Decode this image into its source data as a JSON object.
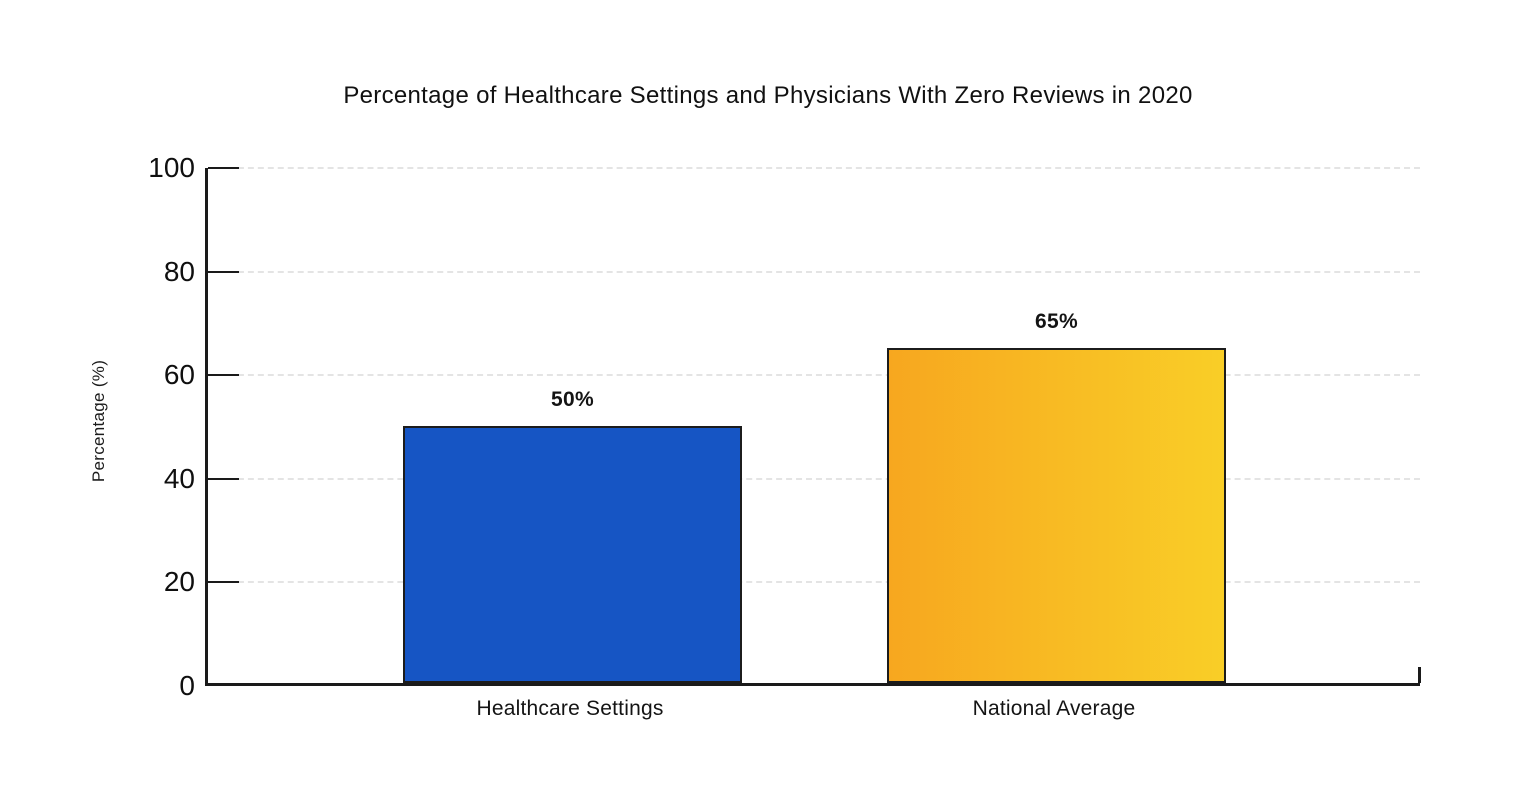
{
  "chart_data": {
    "type": "bar",
    "title": "Percentage of Healthcare Settings and Physicians With Zero Reviews in 2020",
    "ylabel": "Percentage (%)",
    "xlabel": "",
    "categories": [
      "Healthcare Settings",
      "National Average"
    ],
    "values": [
      50,
      65
    ],
    "value_labels": [
      "50%",
      "65%"
    ],
    "ylim": [
      0,
      100
    ],
    "yticks": [
      "0",
      "20",
      "40",
      "60",
      "80",
      "100"
    ],
    "grid": "horizontal-dashed",
    "legend_position": "none",
    "bar_fills": [
      {
        "style": "solid",
        "color": "#1655c4",
        "to": null
      },
      {
        "style": "gradient-left-to-right",
        "color": "#f7a71f",
        "to": "#f9ce27"
      }
    ],
    "bar_border_color": "#1c1c1c",
    "axis_color": "#1a1a1a",
    "gridline_color": "#e4e4e4",
    "text_color": "#111111",
    "background_color": "#ffffff"
  }
}
